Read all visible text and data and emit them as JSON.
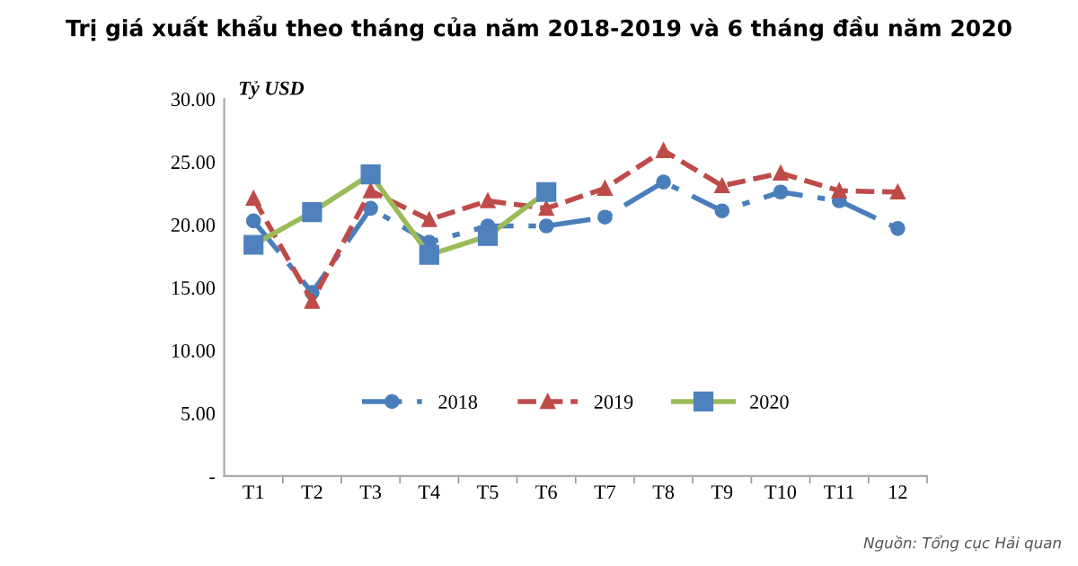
{
  "chart_data": {
    "type": "line",
    "title": "Trị giá xuất khẩu theo tháng của năm 2018-2019 và 6 tháng đầu năm 2020",
    "ylabel": "Tỷ USD",
    "categories": [
      "T1",
      "T2",
      "T3",
      "T4",
      "T5",
      "T6",
      "T7",
      "T8",
      "T9",
      "T10",
      "T11",
      "12"
    ],
    "series": [
      {
        "name": "2018",
        "color": "#4a7ebb",
        "marker": "circle",
        "line_style": "dashdot",
        "values": [
          20.3,
          14.6,
          21.3,
          18.6,
          19.9,
          19.9,
          20.6,
          23.4,
          21.1,
          22.6,
          21.9,
          19.7
        ]
      },
      {
        "name": "2019",
        "color": "#be4b48",
        "marker": "triangle",
        "line_style": "dashed",
        "values": [
          22.1,
          13.9,
          22.7,
          20.4,
          21.9,
          21.3,
          22.9,
          25.9,
          23.1,
          24.1,
          22.7,
          22.6
        ]
      },
      {
        "name": "2020",
        "color": "#9bbb59",
        "colors": [
          "#4f81bd",
          "#4f81bd",
          "#4f81bd",
          "#4f81bd",
          "#4f81bd",
          "#4f81bd",
          null,
          null,
          null,
          null,
          null,
          null
        ],
        "marker": "square",
        "line_style": "solid",
        "values": [
          18.4,
          21.0,
          24.0,
          17.6,
          19.1,
          22.6,
          null,
          null,
          null,
          null,
          null,
          null
        ]
      }
    ],
    "ylim": [
      0,
      30
    ],
    "yticks": [
      {
        "value": 0,
        "label": "-"
      },
      {
        "value": 5,
        "label": "5.00"
      },
      {
        "value": 10,
        "label": "10.00"
      },
      {
        "value": 15,
        "label": "15.00"
      },
      {
        "value": 20,
        "label": "20.00"
      },
      {
        "value": 25,
        "label": "25.00"
      },
      {
        "value": 30,
        "label": "30.00"
      }
    ],
    "grid": false,
    "legend": "bottom",
    "annotations": [
      "Nguồn: Tổng cục Hải quan"
    ]
  }
}
